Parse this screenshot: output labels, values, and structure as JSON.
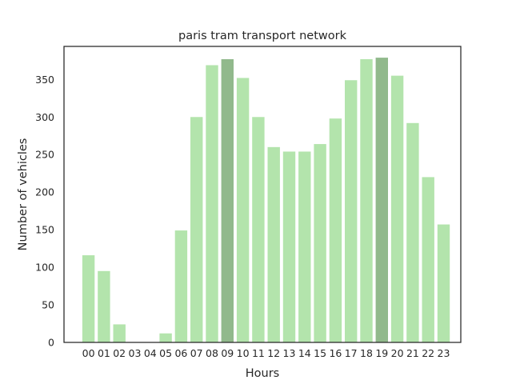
{
  "chart_data": {
    "type": "bar",
    "title": "paris tram transport network",
    "xlabel": "Hours",
    "ylabel": "Number of vehicles",
    "categories": [
      "00",
      "01",
      "02",
      "03",
      "04",
      "05",
      "06",
      "07",
      "08",
      "09",
      "10",
      "11",
      "12",
      "13",
      "14",
      "15",
      "16",
      "17",
      "18",
      "19",
      "20",
      "21",
      "22",
      "23"
    ],
    "values": [
      116,
      95,
      24,
      0,
      0,
      12,
      149,
      300,
      369,
      377,
      352,
      300,
      260,
      254,
      254,
      264,
      298,
      349,
      377,
      379,
      355,
      292,
      220,
      157
    ],
    "highlighted_categories": [
      "09",
      "19"
    ],
    "ylim": [
      0,
      394
    ],
    "yticks": [
      0,
      50,
      100,
      150,
      200,
      250,
      300,
      350
    ],
    "grid": false,
    "colors": {
      "bar": "#b3e4ac",
      "bar_highlight": "#91b98c",
      "frame": "#262626"
    }
  }
}
